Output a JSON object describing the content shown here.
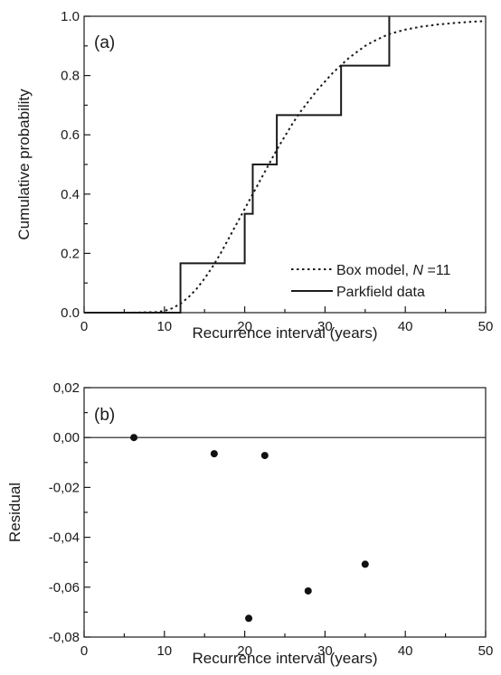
{
  "chart_data": [
    {
      "panel_label": "(a)",
      "type": "line",
      "xlabel": "Recurrence interval (years)",
      "ylabel": "Cumulative probability",
      "xlim": [
        0,
        50
      ],
      "ylim": [
        0,
        1.0
      ],
      "x_ticks": [
        "0",
        "10",
        "20",
        "30",
        "40",
        "50"
      ],
      "y_ticks": [
        "0.0",
        "0.2",
        "0.4",
        "0.6",
        "0.8",
        "1.0"
      ],
      "legend_position": "bottom-right",
      "series": [
        {
          "name_prefix": "Box model, ",
          "name_var": "N",
          "name_suffix": " =11",
          "style": "dotted",
          "x": [
            0,
            6,
            9,
            10,
            11,
            12,
            13,
            14,
            15,
            16,
            17,
            18,
            19,
            20,
            21,
            22,
            23,
            24,
            25,
            26,
            27,
            28,
            29,
            30,
            31,
            32,
            33,
            34,
            35,
            36,
            37,
            38,
            40,
            42,
            44,
            46,
            48,
            50
          ],
          "y": [
            0,
            0.0,
            0.002,
            0.006,
            0.015,
            0.03,
            0.052,
            0.08,
            0.115,
            0.155,
            0.2,
            0.25,
            0.3,
            0.35,
            0.4,
            0.45,
            0.5,
            0.55,
            0.595,
            0.64,
            0.68,
            0.715,
            0.75,
            0.78,
            0.81,
            0.835,
            0.86,
            0.88,
            0.9,
            0.915,
            0.928,
            0.94,
            0.955,
            0.965,
            0.972,
            0.977,
            0.981,
            0.984
          ]
        },
        {
          "name": "Parkfield data",
          "style": "step",
          "x": [
            0,
            12,
            12,
            20,
            20,
            21,
            21,
            24,
            24,
            32,
            32,
            38,
            38
          ],
          "y": [
            0,
            0,
            0.1667,
            0.1667,
            0.3333,
            0.3333,
            0.5,
            0.5,
            0.6667,
            0.6667,
            0.8333,
            0.8333,
            1.0
          ]
        }
      ]
    },
    {
      "panel_label": "(b)",
      "type": "scatter",
      "xlabel": "Recurrence interval (years)",
      "ylabel": "Residual",
      "xlim": [
        0,
        50
      ],
      "ylim": [
        -0.08,
        0.02
      ],
      "x_ticks": [
        "0",
        "10",
        "20",
        "30",
        "40",
        "50"
      ],
      "y_ticks": [
        "0,02",
        "0,00",
        "-0,02",
        "-0,04",
        "-0,06",
        "-0,08"
      ],
      "zero_line": true,
      "points": [
        {
          "x": 6.2,
          "y": 0.0
        },
        {
          "x": 16.2,
          "y": -0.0065
        },
        {
          "x": 20.5,
          "y": -0.0725
        },
        {
          "x": 22.5,
          "y": -0.0072
        },
        {
          "x": 27.9,
          "y": -0.0615
        },
        {
          "x": 35.0,
          "y": -0.0508
        }
      ]
    }
  ]
}
